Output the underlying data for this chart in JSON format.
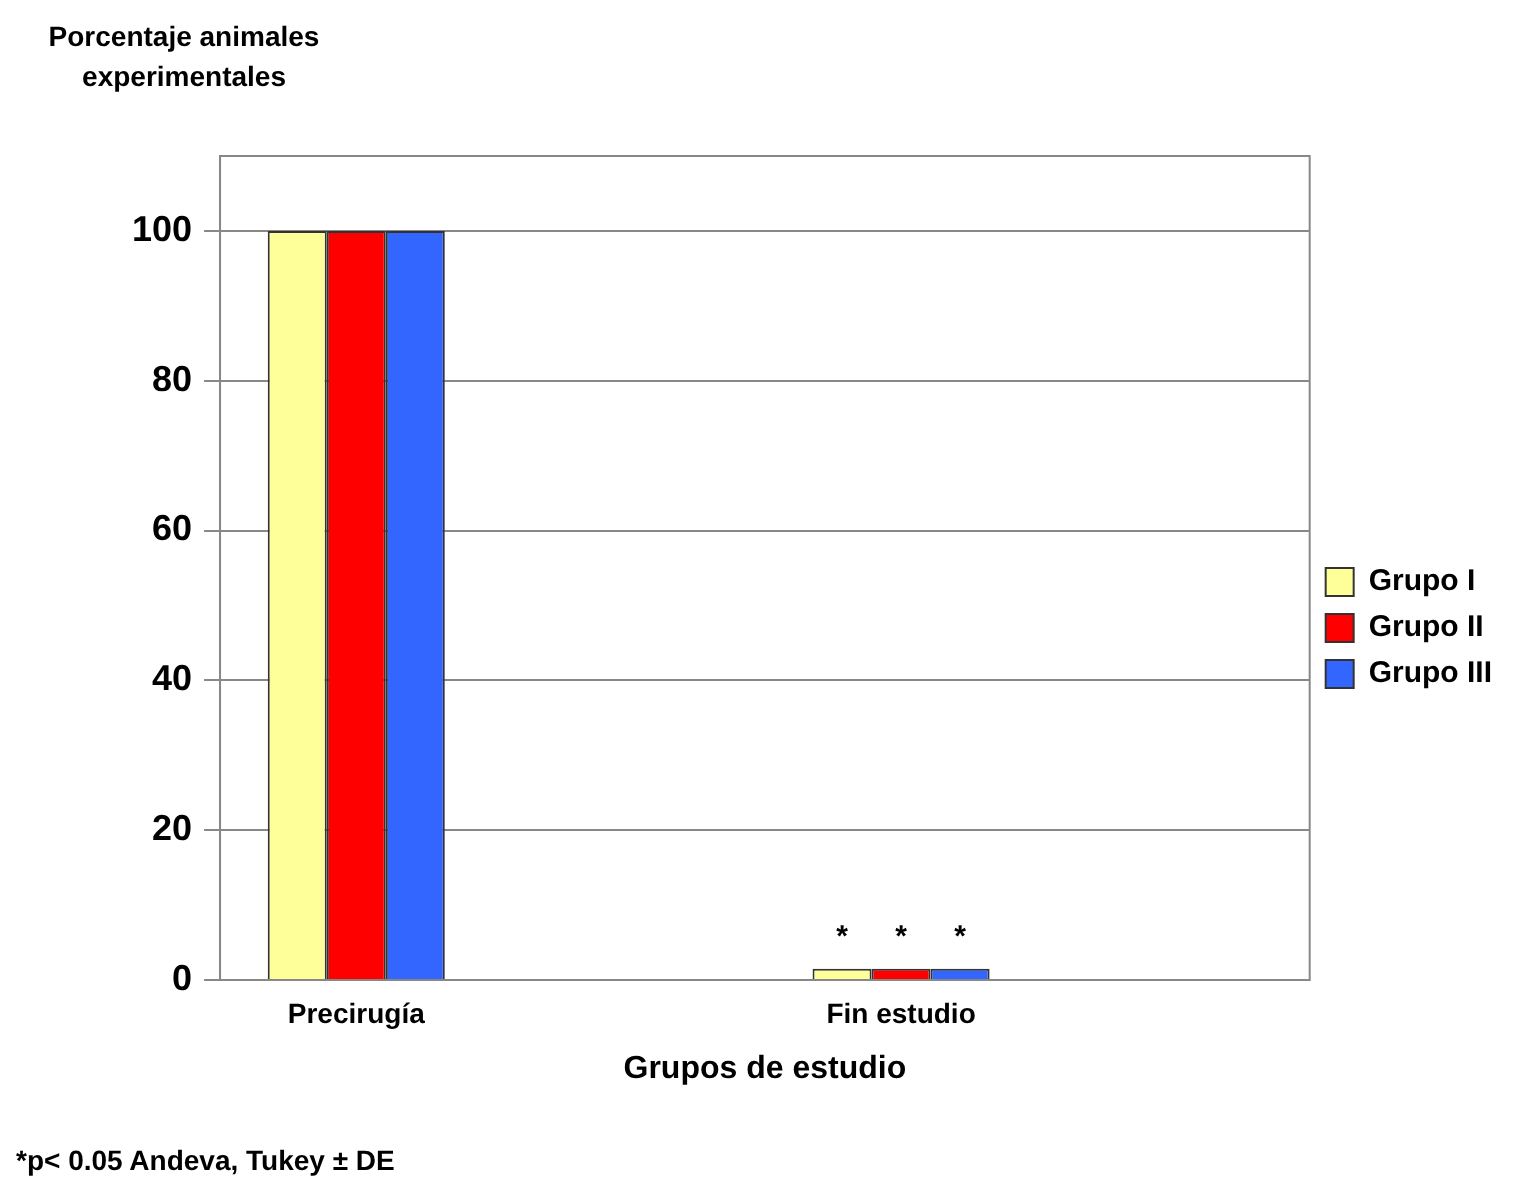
{
  "chart_data": {
    "type": "bar",
    "ylabel": "Porcentaje animales experimentales",
    "xlabel": "Grupos de estudio",
    "categories": [
      "Precirugía",
      null,
      "Fin estudio",
      null
    ],
    "series": [
      {
        "name": "Grupo I",
        "color": "#ffff99",
        "values": [
          100,
          null,
          1.5,
          null
        ],
        "value_labels": [
          null,
          null,
          "*",
          null
        ]
      },
      {
        "name": "Grupo II",
        "color": "#ff0000",
        "values": [
          100,
          null,
          1.5,
          null
        ],
        "value_labels": [
          null,
          null,
          "*",
          null
        ]
      },
      {
        "name": "Grupo III",
        "color": "#3366ff",
        "values": [
          100,
          null,
          1.5,
          null
        ],
        "value_labels": [
          null,
          null,
          "*",
          null
        ]
      }
    ],
    "ylim": [
      0,
      110
    ],
    "yticks": [
      0,
      20,
      40,
      60,
      80,
      100
    ],
    "grid": "y",
    "legend": "right",
    "annotations": [
      "*p< 0.05 Andeva, Tukey ± DE"
    ]
  }
}
